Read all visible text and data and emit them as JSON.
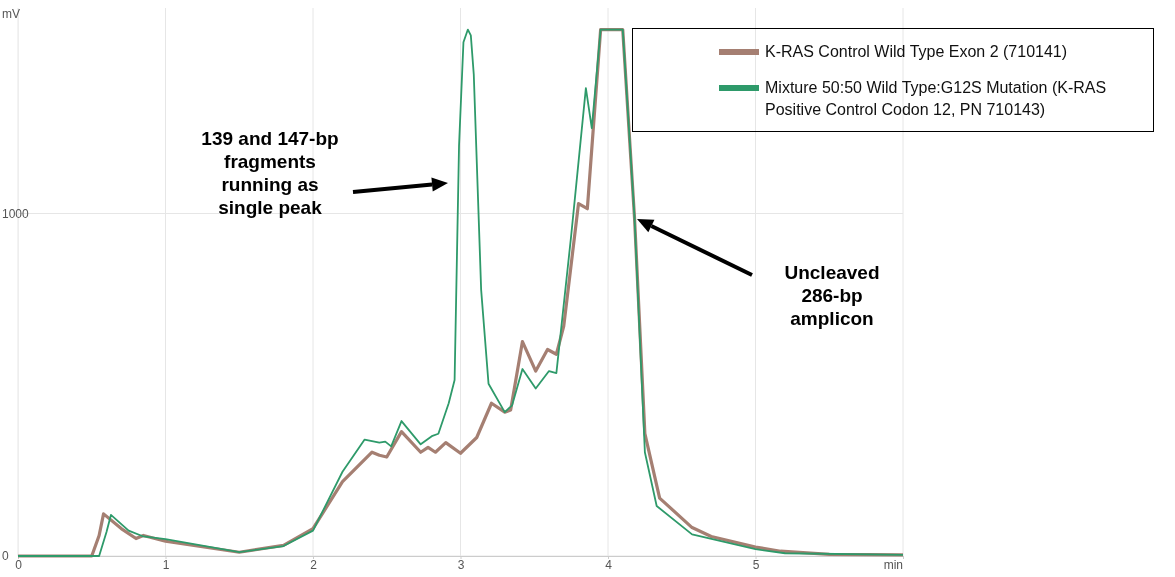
{
  "chart_data": {
    "type": "line",
    "xlabel": "min",
    "ylabel": "mV",
    "xlim": [
      0,
      6
    ],
    "ylim": [
      0,
      1600
    ],
    "xticks": [
      0,
      1,
      2,
      3,
      4,
      5,
      {
        "value": 6,
        "label": null
      }
    ],
    "yticks": [
      0,
      1000
    ],
    "grid": true,
    "legend": "top right",
    "line_style": "solid",
    "series": [
      {
        "name": "K-RAS Control Wild Type Exon 2 (710141)",
        "color": "#a57f72",
        "x": [
          0,
          0.5,
          0.55,
          0.58,
          0.7,
          0.8,
          0.85,
          1.0,
          1.5,
          1.8,
          2.0,
          2.2,
          2.4,
          2.45,
          2.5,
          2.6,
          2.73,
          2.78,
          2.83,
          2.9,
          3.0,
          3.11,
          3.21,
          3.3,
          3.34,
          3.42,
          3.51,
          3.59,
          3.65,
          3.7,
          3.8,
          3.86,
          3.95,
          4.1,
          4.18,
          4.25,
          4.35,
          4.57,
          4.7,
          5.0,
          5.17,
          5.5,
          6.0
        ],
        "values": [
          0,
          0,
          60,
          123,
          80,
          51,
          60,
          43,
          11,
          31,
          80,
          217,
          303,
          294,
          289,
          363,
          303,
          317,
          303,
          331,
          300,
          346,
          446,
          420,
          426,
          626,
          540,
          603,
          589,
          671,
          1029,
          1014,
          1537,
          1537,
          986,
          357,
          169,
          83,
          57,
          26,
          14,
          5,
          3
        ]
      },
      {
        "name": "Mixture 50:50 Wild Type:G12S Mutation (K-RAS Positive Control Codon 12, PN 710143)",
        "color": "#2e9a6a",
        "x": [
          0,
          0.55,
          0.6,
          0.63,
          0.75,
          0.85,
          1.0,
          1.5,
          1.8,
          2.0,
          2.2,
          2.35,
          2.45,
          2.49,
          2.53,
          2.6,
          2.73,
          2.81,
          2.85,
          2.92,
          2.96,
          2.99,
          3.02,
          3.05,
          3.07,
          3.09,
          3.14,
          3.19,
          3.3,
          3.35,
          3.42,
          3.51,
          3.6,
          3.65,
          3.75,
          3.85,
          3.89,
          3.95,
          4.1,
          4.18,
          4.25,
          4.33,
          4.57,
          5.0,
          5.2,
          6.0
        ],
        "values": [
          0,
          0,
          70,
          120,
          74,
          57,
          49,
          11,
          29,
          74,
          246,
          340,
          331,
          334,
          320,
          394,
          326,
          351,
          357,
          446,
          514,
          1197,
          1500,
          1537,
          1520,
          1406,
          777,
          503,
          420,
          440,
          546,
          489,
          540,
          534,
          934,
          1366,
          1249,
          1537,
          1537,
          986,
          303,
          146,
          63,
          20,
          8,
          3
        ]
      }
    ],
    "annotations": [
      "139 and 147-bp fragments running as single peak",
      "Uncleaved 286-bp amplicon"
    ]
  }
}
